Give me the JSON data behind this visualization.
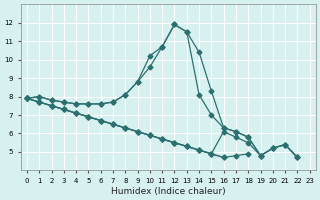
{
  "x": [
    0,
    1,
    2,
    3,
    4,
    5,
    6,
    7,
    8,
    9,
    10,
    11,
    12,
    13,
    14,
    15,
    16,
    17,
    18,
    19,
    20,
    21,
    22,
    23
  ],
  "line1": [
    7.9,
    8.0,
    7.8,
    7.7,
    7.6,
    7.6,
    7.6,
    7.7,
    8.1,
    8.8,
    10.2,
    10.7,
    11.9,
    11.5,
    10.4,
    8.3,
    6.3,
    6.1,
    5.8,
    4.8,
    5.2,
    5.4,
    4.7,
    null
  ],
  "line2": [
    7.9,
    8.0,
    7.8,
    7.7,
    7.6,
    7.6,
    7.6,
    7.7,
    8.1,
    8.8,
    9.6,
    10.7,
    11.9,
    11.5,
    8.1,
    7.0,
    6.3,
    6.1,
    5.8,
    4.8,
    5.2,
    5.4,
    4.7,
    null
  ],
  "line3": [
    7.9,
    7.7,
    7.5,
    7.3,
    7.1,
    6.9,
    6.7,
    6.5,
    6.3,
    6.1,
    5.9,
    5.7,
    5.5,
    5.3,
    5.1,
    4.9,
    4.7,
    null,
    null,
    null,
    null,
    null,
    null,
    null
  ],
  "line4": [
    7.9,
    7.7,
    7.5,
    7.3,
    7.1,
    6.9,
    6.7,
    6.5,
    6.3,
    6.1,
    5.9,
    5.7,
    5.5,
    5.3,
    5.1,
    4.9,
    4.7,
    4.8,
    4.9,
    null,
    null,
    null,
    null,
    null
  ],
  "line5": [
    7.9,
    7.7,
    7.5,
    7.3,
    7.1,
    6.9,
    6.7,
    6.5,
    6.3,
    6.1,
    5.9,
    5.7,
    5.5,
    5.3,
    5.1,
    4.9,
    6.1,
    5.8,
    5.5,
    4.8,
    5.2,
    5.4,
    4.7,
    null
  ],
  "color": "#2d7070",
  "bg_color": "#d7f0f0",
  "grid_color": "#ffffff",
  "xlabel": "Humidex (Indice chaleur)",
  "ylim": [
    4,
    13
  ],
  "xlim": [
    -0.5,
    23.5
  ],
  "yticks": [
    5,
    6,
    7,
    8,
    9,
    10,
    11,
    12
  ],
  "xticks": [
    0,
    1,
    2,
    3,
    4,
    5,
    6,
    7,
    8,
    9,
    10,
    11,
    12,
    13,
    14,
    15,
    16,
    17,
    18,
    19,
    20,
    21,
    22,
    23
  ]
}
